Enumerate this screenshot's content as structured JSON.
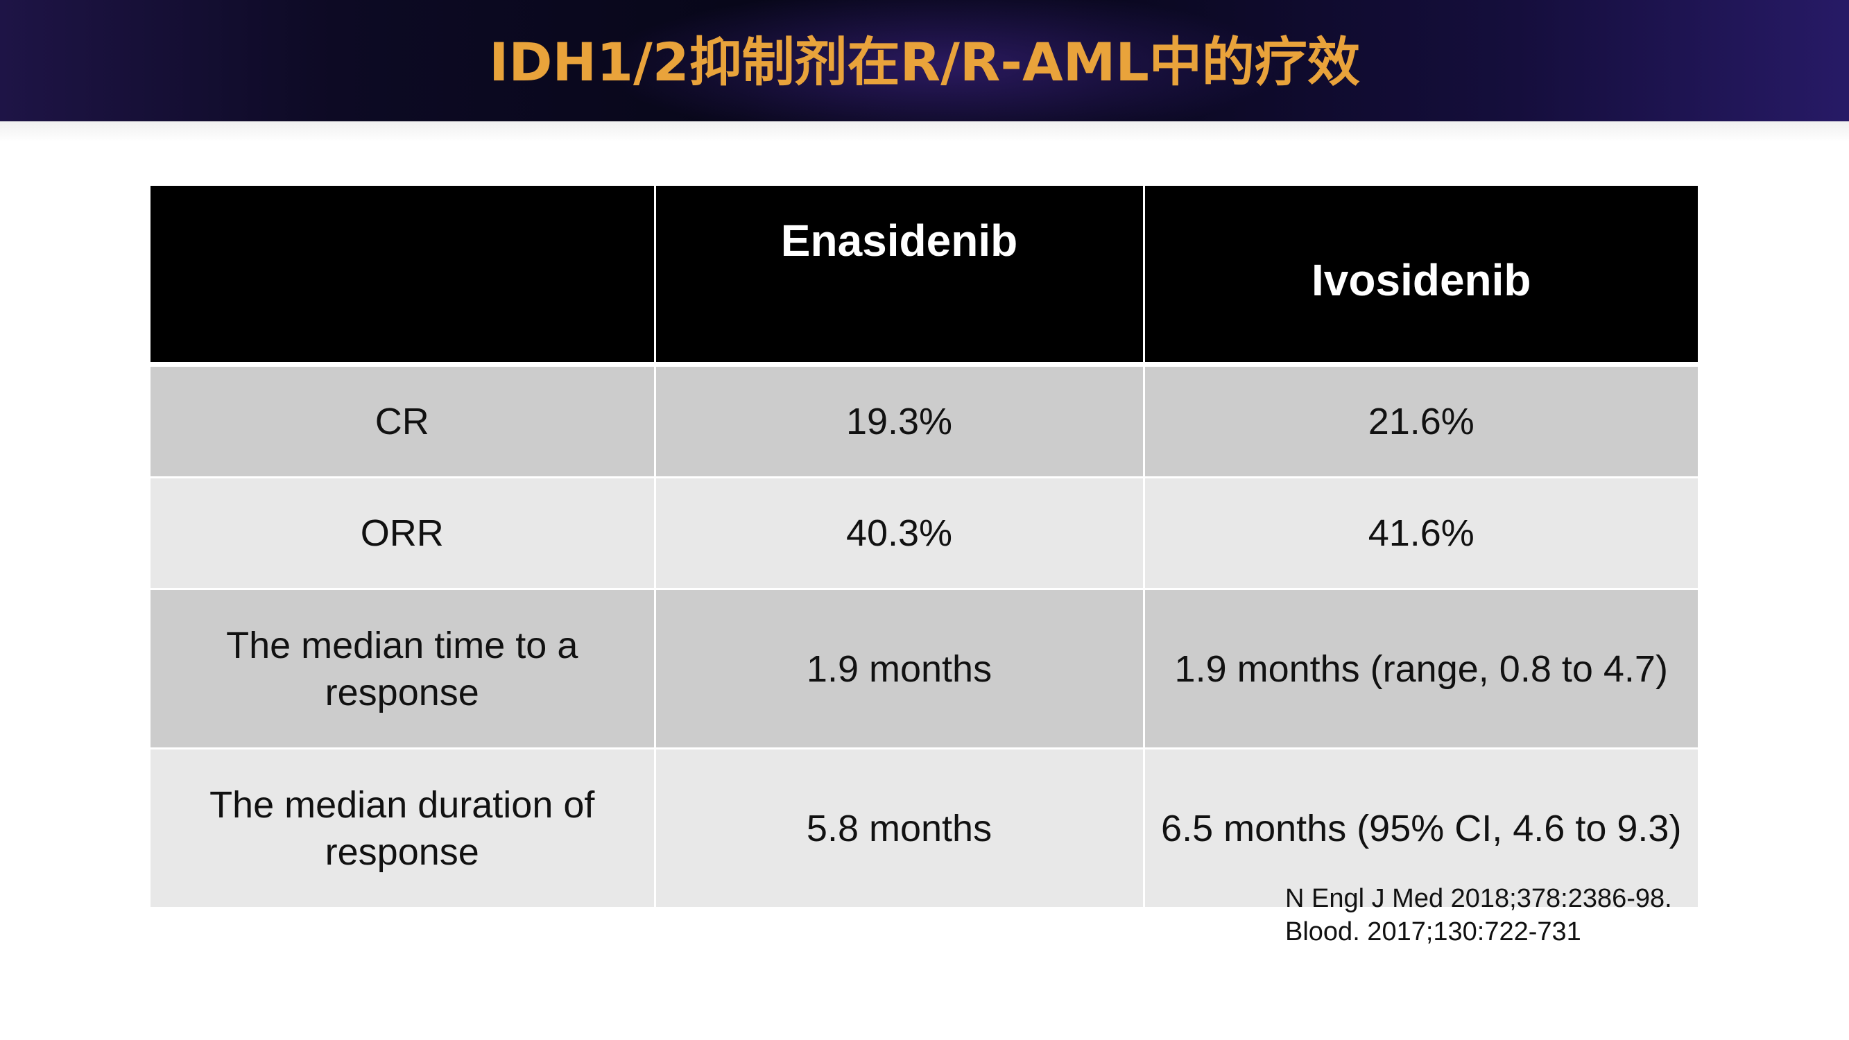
{
  "slide": {
    "title": "IDH1/2抑制剂在R/R-AML中的疗效"
  },
  "table": {
    "headers": [
      "",
      "Enasidenib",
      "Ivosidenib"
    ],
    "rows": [
      {
        "label": "CR",
        "enasidenib": "19.3%",
        "ivosidenib": "21.6%"
      },
      {
        "label": "ORR",
        "enasidenib": "40.3%",
        "ivosidenib": "41.6%"
      },
      {
        "label": "The median time to a response",
        "enasidenib": "1.9 months",
        "ivosidenib": "1.9 months (range, 0.8 to 4.7)"
      },
      {
        "label": "The median duration of response",
        "enasidenib": "5.8 months",
        "ivosidenib": "6.5 months (95% CI, 4.6 to 9.3)"
      }
    ]
  },
  "citations": [
    "N Engl J Med 2018;378:2386-98.",
    "Blood. 2017;130:722-731"
  ],
  "colors": {
    "title": "#e9a33b",
    "header_band": "#0d0a24",
    "table_header": "#000000",
    "row_dark": "#cccccc",
    "row_light": "#e8e8e8"
  }
}
